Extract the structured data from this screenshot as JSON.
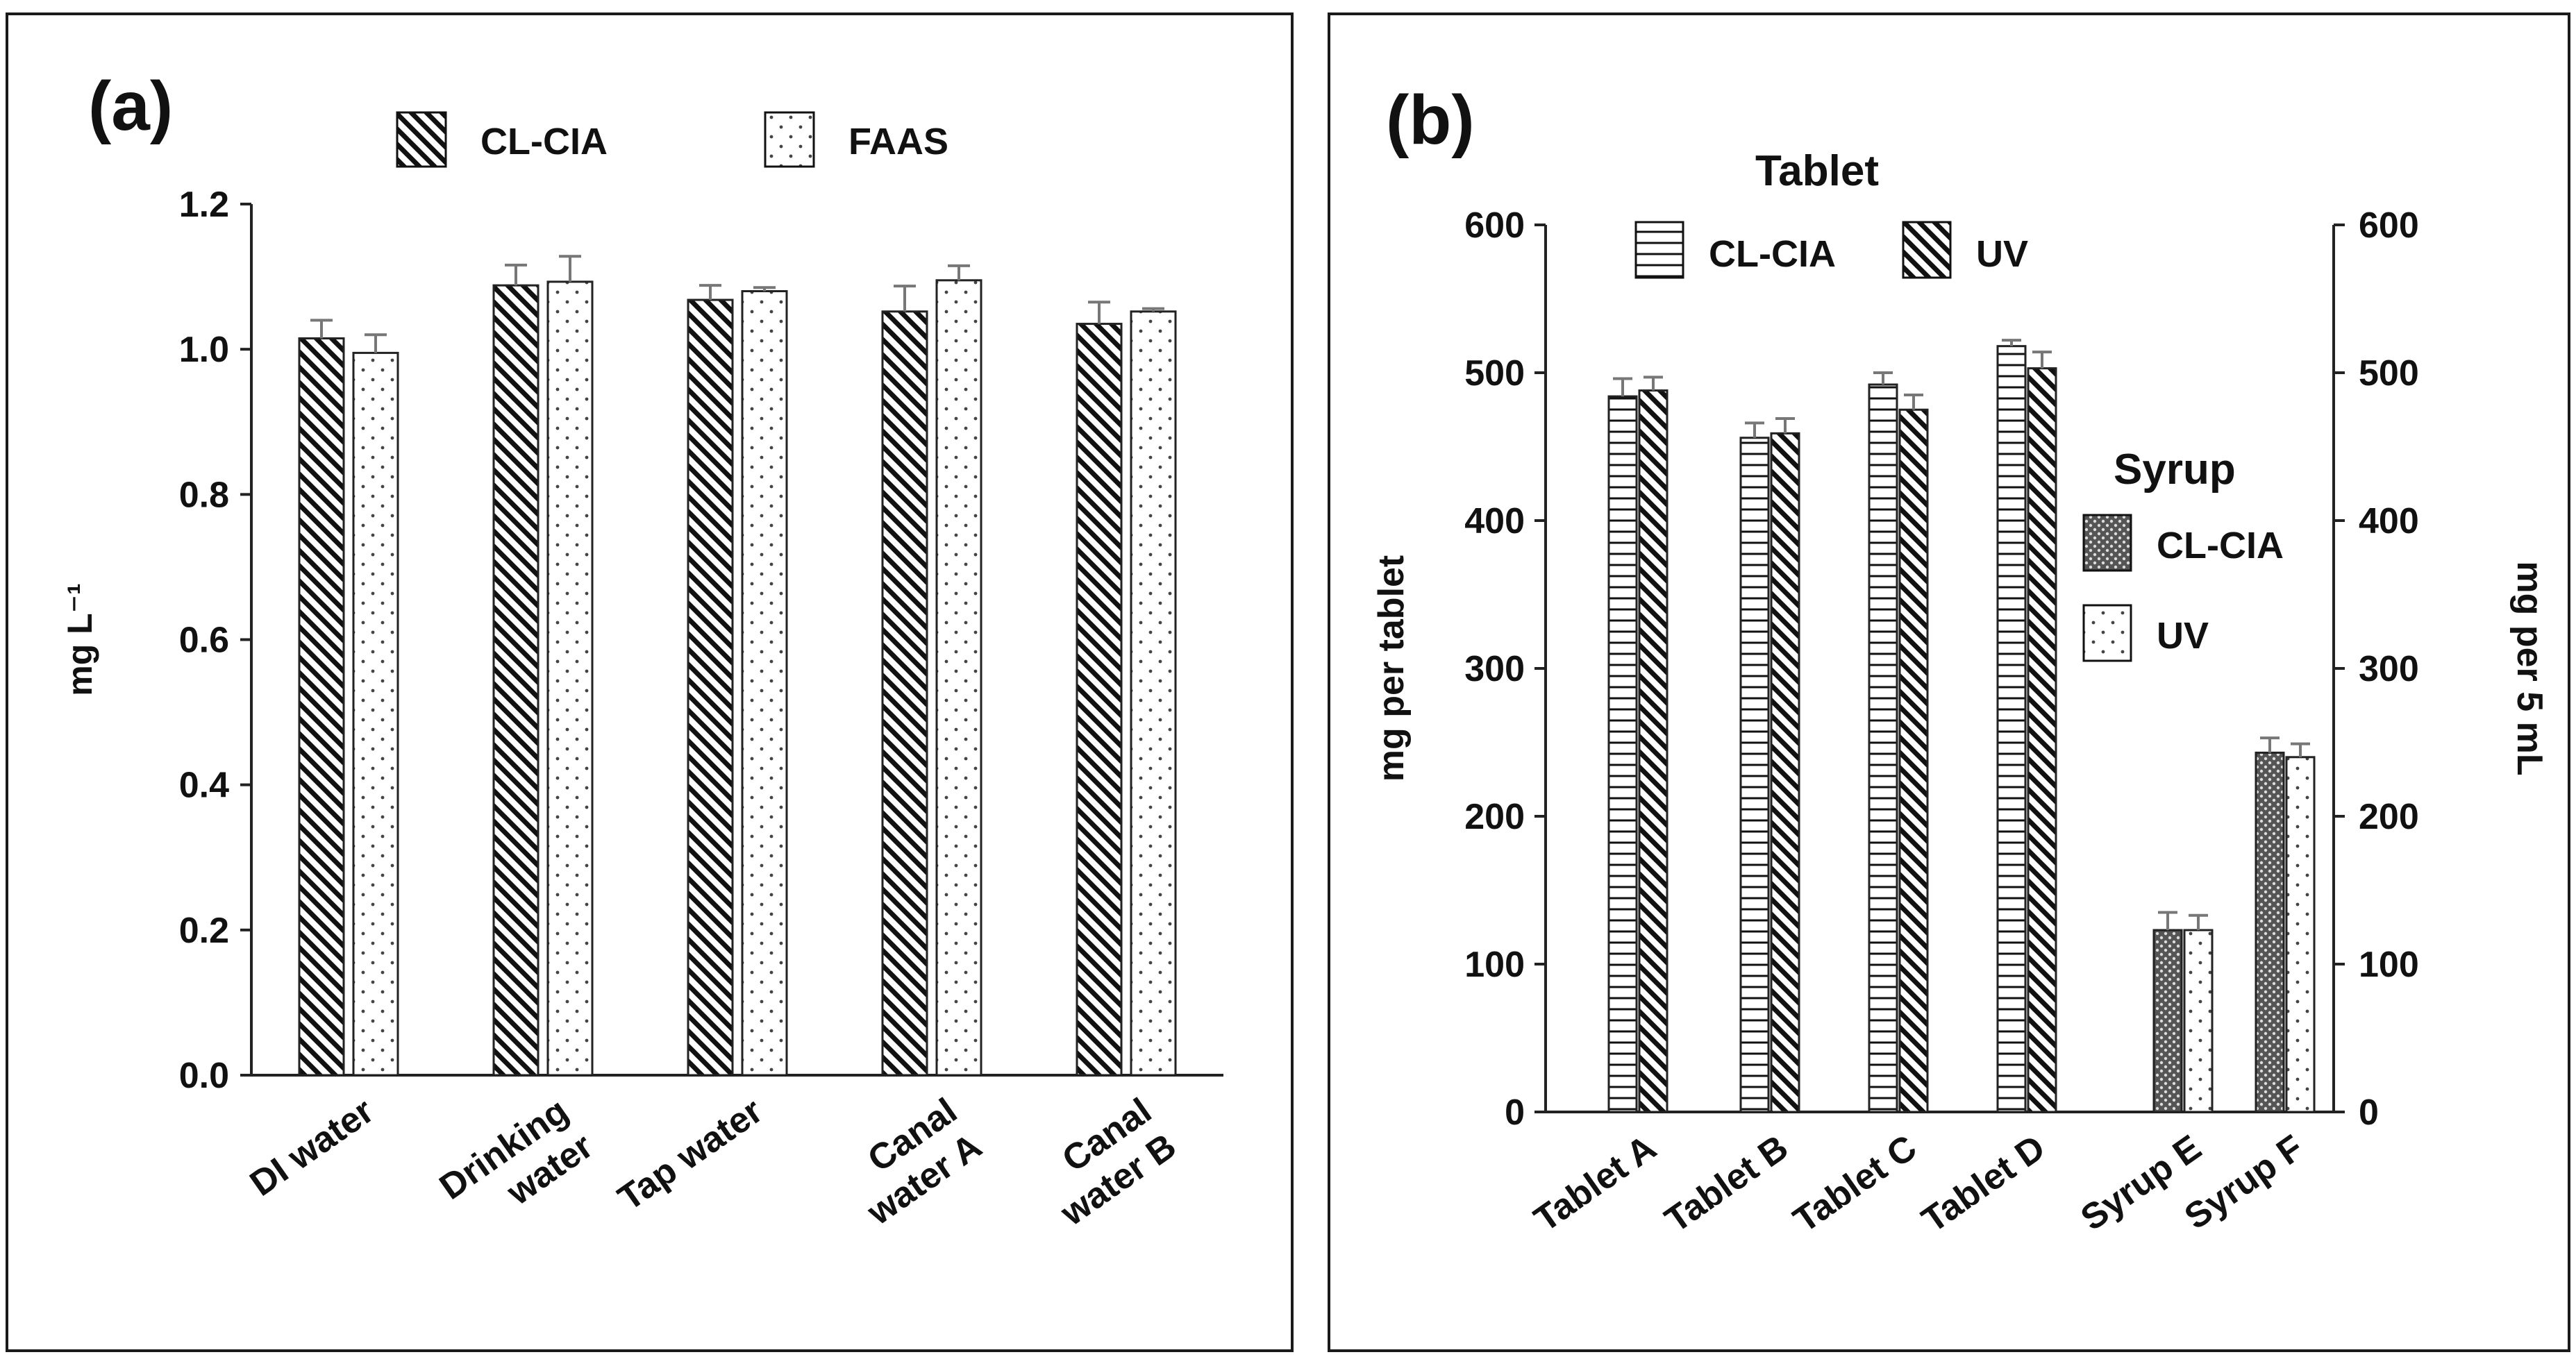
{
  "chart_data": [
    {
      "type": "bar",
      "panel_label": "(a)",
      "ylabel": "mg L⁻¹",
      "ylim": [
        0,
        1.2
      ],
      "y_ticks": [
        "0.0",
        "0.2",
        "0.4",
        "0.6",
        "0.8",
        "1.0",
        "1.2"
      ],
      "categories": [
        [
          "DI water"
        ],
        [
          "Drinking",
          "water"
        ],
        [
          "Tap water"
        ],
        [
          "Canal",
          "water A"
        ],
        [
          "Canal",
          "water B"
        ]
      ],
      "series": [
        {
          "name": "CL-CIA",
          "pattern": "diagonal",
          "values": [
            1.015,
            1.088,
            1.068,
            1.052,
            1.035
          ],
          "errors": [
            0.025,
            0.028,
            0.02,
            0.035,
            0.03
          ]
        },
        {
          "name": "FAAS",
          "pattern": "dots",
          "values": [
            0.995,
            1.093,
            1.08,
            1.095,
            1.052
          ],
          "errors": [
            0.025,
            0.035,
            0.005,
            0.02,
            0.004
          ]
        }
      ],
      "legend": [
        "CL-CIA",
        "FAAS"
      ]
    },
    {
      "type": "bar",
      "panel_label": "(b)",
      "ylabel": "mg  per tablet",
      "ylabel_right": "mg per 5 mL",
      "ylim": [
        0,
        600
      ],
      "y_ticks": [
        "0",
        "100",
        "200",
        "300",
        "400",
        "500",
        "600"
      ],
      "categories": [
        "Tablet A",
        "Tablet B",
        "Tablet C",
        "Tablet D",
        "Syrup E",
        "Syrup F"
      ],
      "tablet_legend_title": "Tablet",
      "syrup_legend_title": "Syrup",
      "series": [
        {
          "name": "CL-CIA",
          "group": "Tablet",
          "pattern": "horizontal",
          "values": [
            484,
            456,
            492,
            518,
            null,
            null
          ],
          "errors": [
            12,
            10,
            8,
            4,
            null,
            null
          ]
        },
        {
          "name": "UV",
          "group": "Tablet",
          "pattern": "diagonal",
          "values": [
            488,
            459,
            475,
            503,
            null,
            null
          ],
          "errors": [
            9,
            10,
            10,
            11,
            null,
            null
          ]
        },
        {
          "name": "CL-CIA",
          "group": "Syrup",
          "pattern": "crosshatch",
          "values": [
            null,
            null,
            null,
            null,
            123,
            243
          ],
          "errors": [
            null,
            null,
            null,
            null,
            12,
            10
          ]
        },
        {
          "name": "UV",
          "group": "Syrup",
          "pattern": "dots",
          "values": [
            null,
            null,
            null,
            null,
            123,
            240
          ],
          "errors": [
            null,
            null,
            null,
            null,
            10,
            9
          ]
        }
      ]
    }
  ]
}
